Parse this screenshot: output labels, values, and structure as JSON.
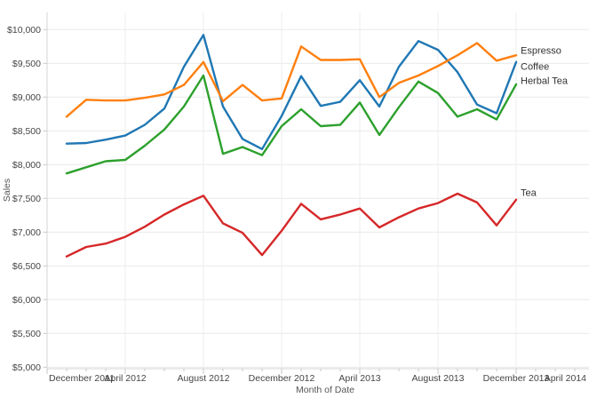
{
  "chart_data": {
    "type": "line",
    "title": "",
    "xlabel": "Month of Date",
    "ylabel": "Sales",
    "grid": true,
    "legend_position": "line-end-labels",
    "ylim": [
      5000,
      10250
    ],
    "y_ticks": [
      5000,
      5500,
      6000,
      6500,
      7000,
      7500,
      8000,
      8500,
      9000,
      9500,
      10000
    ],
    "y_tick_labels": [
      "$5,000",
      "$5,500",
      "$6,000",
      "$6,500",
      "$7,000",
      "$7,500",
      "$8,000",
      "$8,500",
      "$9,000",
      "$9,500",
      "$10,000"
    ],
    "x_tick_labels": [
      "December 2011",
      "April 2012",
      "August 2012",
      "December 2012",
      "April 2013",
      "August 2013",
      "December 2013",
      "April 2014"
    ],
    "x_axis_start": "December 2011",
    "x_axis_months_per_labeled_tick": 4,
    "months": [
      "Jan 2012",
      "Feb 2012",
      "Mar 2012",
      "Apr 2012",
      "May 2012",
      "Jun 2012",
      "Jul 2012",
      "Aug 2012",
      "Sep 2012",
      "Oct 2012",
      "Nov 2012",
      "Dec 2012",
      "Jan 2013",
      "Feb 2013",
      "Mar 2013",
      "Apr 2013",
      "May 2013",
      "Jun 2013",
      "Jul 2013",
      "Aug 2013",
      "Sep 2013",
      "Oct 2013",
      "Nov 2013",
      "Dec 2013"
    ],
    "series": [
      {
        "name": "Espresso",
        "color": "#ff7f0e",
        "values": [
          8710,
          8960,
          8950,
          8950,
          8990,
          9040,
          9180,
          9520,
          8940,
          9180,
          8950,
          8980,
          9750,
          9550,
          9550,
          9560,
          9000,
          9210,
          9320,
          9460,
          9620,
          9800,
          9540,
          9620
        ]
      },
      {
        "name": "Coffee",
        "color": "#1f77b4",
        "values": [
          8310,
          8320,
          8370,
          8430,
          8590,
          8830,
          9450,
          9920,
          8860,
          8380,
          8230,
          8720,
          9310,
          8870,
          8930,
          9250,
          8860,
          9450,
          9830,
          9700,
          9370,
          8890,
          8760,
          9520
        ]
      },
      {
        "name": "Herbal Tea",
        "color": "#2ca02c",
        "values": [
          7870,
          7960,
          8050,
          8070,
          8280,
          8520,
          8860,
          9320,
          8160,
          8260,
          8140,
          8570,
          8820,
          8570,
          8590,
          8920,
          8440,
          8850,
          9230,
          9060,
          8710,
          8820,
          8670,
          9190
        ]
      },
      {
        "name": "Tea",
        "color": "#d62728",
        "values": [
          6640,
          6780,
          6830,
          6930,
          7080,
          7260,
          7410,
          7540,
          7130,
          6990,
          6660,
          7020,
          7420,
          7190,
          7260,
          7350,
          7070,
          7220,
          7350,
          7430,
          7570,
          7440,
          7100,
          7480
        ]
      }
    ],
    "colors": {
      "grid_horizontal": "#e9e9e9",
      "grid_vertical": "#eeeeee",
      "axis_line": "#d4d4d4",
      "tick_mark": "#c9c9c9",
      "tick_text": "#454545",
      "axis_title_text": "#555555",
      "series_label_text": "#333333"
    }
  }
}
